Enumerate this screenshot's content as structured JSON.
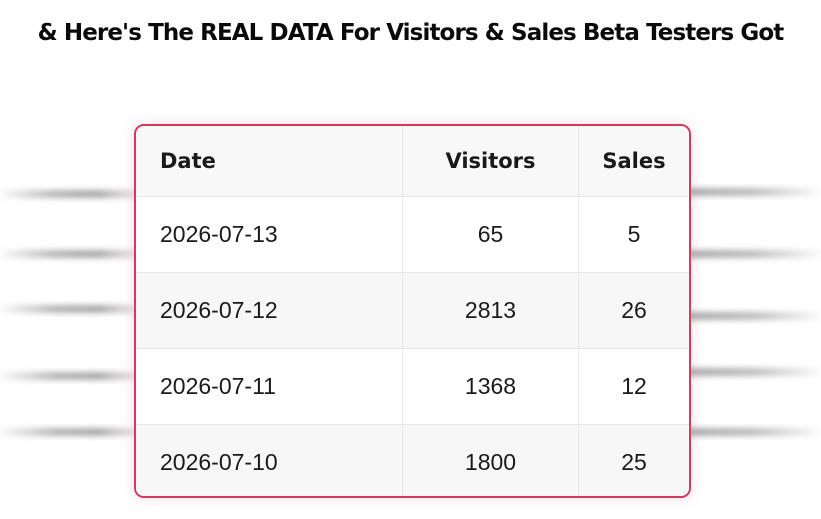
{
  "title": "& Here's The REAL DATA For Visitors & Sales Beta Testers Got",
  "table": {
    "headers": [
      "Date",
      "Visitors",
      "Sales"
    ],
    "rows": [
      [
        "2026-07-13",
        "65",
        "5"
      ],
      [
        "2026-07-12",
        "2813",
        "26"
      ],
      [
        "2026-07-11",
        "1368",
        "12"
      ],
      [
        "2026-07-10",
        "1800",
        "25"
      ]
    ]
  },
  "colors": {
    "table_border": "#d23a5e",
    "header_bg": "#f8f8f8"
  }
}
